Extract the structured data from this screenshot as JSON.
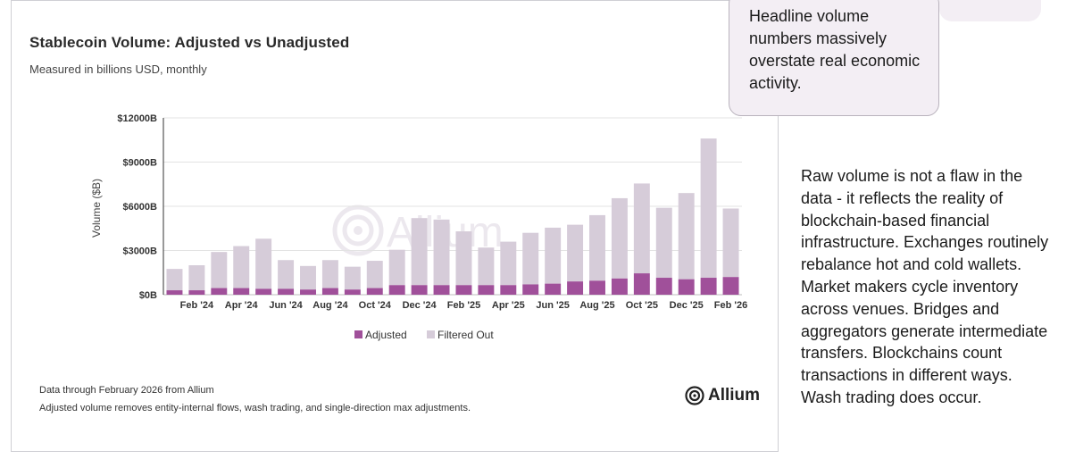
{
  "chart_data": {
    "type": "bar",
    "stacked": true,
    "title": "Stablecoin Volume: Adjusted vs Unadjusted",
    "subtitle": "Measured in billions USD, monthly",
    "ylabel": "Volume ($B)",
    "xlabel": "",
    "ylim": [
      0,
      12000
    ],
    "yticks": [
      0,
      3000,
      6000,
      9000,
      12000
    ],
    "ytick_labels": [
      "$0B",
      "$3000B",
      "$6000B",
      "$9000B",
      "$12000B"
    ],
    "grid": true,
    "legend_position": "bottom-center",
    "categories": [
      "Jan '24",
      "Feb '24",
      "Mar '24",
      "Apr '24",
      "May '24",
      "Jun '24",
      "Jul '24",
      "Aug '24",
      "Sep '24",
      "Oct '24",
      "Nov '24",
      "Dec '24",
      "Jan '25",
      "Feb '25",
      "Mar '25",
      "Apr '25",
      "May '25",
      "Jun '25",
      "Jul '25",
      "Aug '25",
      "Sep '25",
      "Oct '25",
      "Nov '25",
      "Dec '25",
      "Jan '26",
      "Feb '26"
    ],
    "xtick_labels": [
      "Feb '24",
      "Apr '24",
      "Jun '24",
      "Aug '24",
      "Oct '24",
      "Dec '24",
      "Feb '25",
      "Apr '25",
      "Jun '25",
      "Aug '25",
      "Oct '25",
      "Dec '25",
      "Feb '26"
    ],
    "series": [
      {
        "name": "Adjusted",
        "color": "#a0509a",
        "values": [
          300,
          300,
          450,
          450,
          400,
          400,
          350,
          450,
          350,
          450,
          650,
          650,
          650,
          650,
          650,
          650,
          700,
          750,
          900,
          950,
          1100,
          1450,
          1150,
          1050,
          1150,
          1200
        ]
      },
      {
        "name": "Filtered Out",
        "color": "#d6ccd9",
        "values": [
          1450,
          1700,
          2450,
          2850,
          3400,
          1950,
          1600,
          1900,
          1550,
          1850,
          2400,
          4550,
          4450,
          3650,
          2550,
          2950,
          3500,
          3800,
          3850,
          4450,
          5450,
          6100,
          4750,
          5850,
          9450,
          4650
        ]
      }
    ],
    "watermark": "Allium"
  },
  "legend": {
    "adjusted_label": "Adjusted",
    "filtered_label": "Filtered Out"
  },
  "notes": {
    "source": "Data through February 2026 from Allium",
    "method": "Adjusted volume removes entity-internal flows, wash trading, and single-direction max adjustments."
  },
  "brand": {
    "name": "Allium",
    "icon": "allium-logo-icon"
  },
  "callout": {
    "text": "Headline volume numbers massively overstate real economic activity."
  },
  "side_text": "Raw volume is not a flaw in the data - it reflects the reality of blockchain-based financial infrastructure. Exchanges routinely rebalance hot and cold wallets. Market makers cycle inventory across venues. Bridges and aggregators generate intermediate transfers. Blockchains count transactions in different ways. Wash trading does occur.",
  "colors": {
    "adjusted": "#a0509a",
    "filtered": "#d6ccd9",
    "callout_bg": "#f3eef4"
  }
}
